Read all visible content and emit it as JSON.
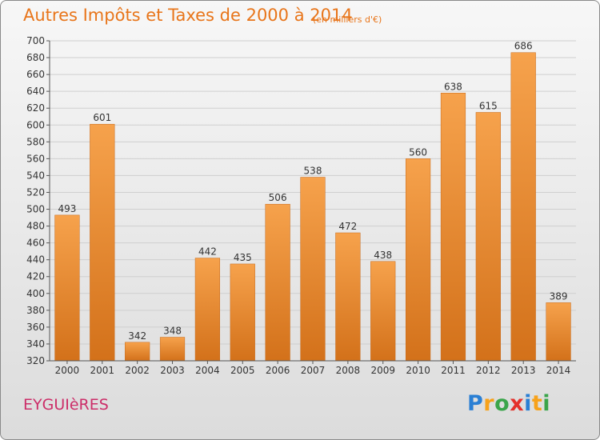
{
  "title": "Autres Impôts et Taxes de 2000 à 2014",
  "subtitle": "(en milliers d'€)",
  "place": "EYGUIèRES",
  "logo": {
    "letters": [
      "P",
      "r",
      "o",
      "x",
      "i",
      "t",
      "i"
    ],
    "colors": [
      "#2a7fd4",
      "#f7a21b",
      "#3aa54a",
      "#e4312b",
      "#2a7fd4",
      "#f7a21b",
      "#3aa54a"
    ]
  },
  "colors": {
    "bar_top": "#f6a24c",
    "bar_bottom": "#d3711a",
    "grid": "#cfcfcf",
    "text": "#333333",
    "title": "#e8751a"
  },
  "chart_data": {
    "type": "bar",
    "categories": [
      "2000",
      "2001",
      "2002",
      "2003",
      "2004",
      "2005",
      "2006",
      "2007",
      "2008",
      "2009",
      "2010",
      "2011",
      "2012",
      "2013",
      "2014"
    ],
    "values": [
      493,
      601,
      342,
      348,
      442,
      435,
      506,
      538,
      472,
      438,
      560,
      638,
      615,
      686,
      389
    ],
    "ylim": [
      320,
      700
    ],
    "yticks": [
      320,
      340,
      360,
      380,
      400,
      420,
      440,
      460,
      480,
      500,
      520,
      540,
      560,
      580,
      600,
      620,
      640,
      660,
      680,
      700
    ],
    "title": "Autres Impôts et Taxes de 2000 à 2014",
    "xlabel": "",
    "ylabel": "",
    "grid": true
  }
}
